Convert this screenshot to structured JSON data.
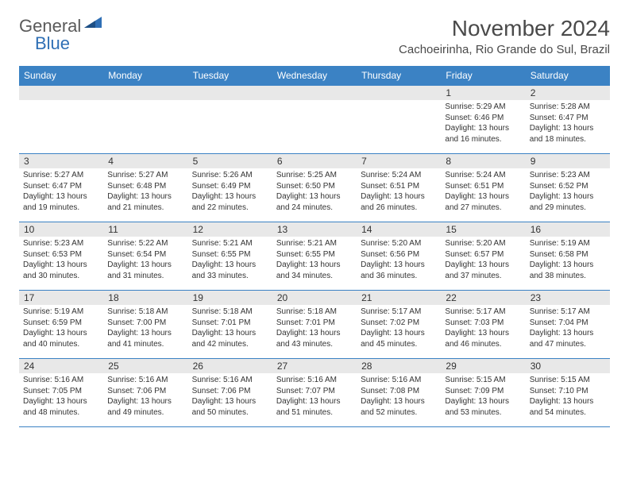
{
  "logo": {
    "text1": "General",
    "text2": "Blue"
  },
  "title": "November 2024",
  "location": "Cachoeirinha, Rio Grande do Sul, Brazil",
  "day_headers": [
    "Sunday",
    "Monday",
    "Tuesday",
    "Wednesday",
    "Thursday",
    "Friday",
    "Saturday"
  ],
  "colors": {
    "header_bg": "#3b82c4",
    "header_text": "#ffffff",
    "day_num_bg": "#e8e8e8",
    "border": "#3b82c4",
    "logo_accent": "#2f6fb5",
    "logo_gray": "#5a5a5a"
  },
  "weeks": [
    [
      {
        "empty": true
      },
      {
        "empty": true
      },
      {
        "empty": true
      },
      {
        "empty": true
      },
      {
        "empty": true
      },
      {
        "day": "1",
        "sunrise": "Sunrise: 5:29 AM",
        "sunset": "Sunset: 6:46 PM",
        "daylight1": "Daylight: 13 hours",
        "daylight2": "and 16 minutes."
      },
      {
        "day": "2",
        "sunrise": "Sunrise: 5:28 AM",
        "sunset": "Sunset: 6:47 PM",
        "daylight1": "Daylight: 13 hours",
        "daylight2": "and 18 minutes."
      }
    ],
    [
      {
        "day": "3",
        "sunrise": "Sunrise: 5:27 AM",
        "sunset": "Sunset: 6:47 PM",
        "daylight1": "Daylight: 13 hours",
        "daylight2": "and 19 minutes."
      },
      {
        "day": "4",
        "sunrise": "Sunrise: 5:27 AM",
        "sunset": "Sunset: 6:48 PM",
        "daylight1": "Daylight: 13 hours",
        "daylight2": "and 21 minutes."
      },
      {
        "day": "5",
        "sunrise": "Sunrise: 5:26 AM",
        "sunset": "Sunset: 6:49 PM",
        "daylight1": "Daylight: 13 hours",
        "daylight2": "and 22 minutes."
      },
      {
        "day": "6",
        "sunrise": "Sunrise: 5:25 AM",
        "sunset": "Sunset: 6:50 PM",
        "daylight1": "Daylight: 13 hours",
        "daylight2": "and 24 minutes."
      },
      {
        "day": "7",
        "sunrise": "Sunrise: 5:24 AM",
        "sunset": "Sunset: 6:51 PM",
        "daylight1": "Daylight: 13 hours",
        "daylight2": "and 26 minutes."
      },
      {
        "day": "8",
        "sunrise": "Sunrise: 5:24 AM",
        "sunset": "Sunset: 6:51 PM",
        "daylight1": "Daylight: 13 hours",
        "daylight2": "and 27 minutes."
      },
      {
        "day": "9",
        "sunrise": "Sunrise: 5:23 AM",
        "sunset": "Sunset: 6:52 PM",
        "daylight1": "Daylight: 13 hours",
        "daylight2": "and 29 minutes."
      }
    ],
    [
      {
        "day": "10",
        "sunrise": "Sunrise: 5:23 AM",
        "sunset": "Sunset: 6:53 PM",
        "daylight1": "Daylight: 13 hours",
        "daylight2": "and 30 minutes."
      },
      {
        "day": "11",
        "sunrise": "Sunrise: 5:22 AM",
        "sunset": "Sunset: 6:54 PM",
        "daylight1": "Daylight: 13 hours",
        "daylight2": "and 31 minutes."
      },
      {
        "day": "12",
        "sunrise": "Sunrise: 5:21 AM",
        "sunset": "Sunset: 6:55 PM",
        "daylight1": "Daylight: 13 hours",
        "daylight2": "and 33 minutes."
      },
      {
        "day": "13",
        "sunrise": "Sunrise: 5:21 AM",
        "sunset": "Sunset: 6:55 PM",
        "daylight1": "Daylight: 13 hours",
        "daylight2": "and 34 minutes."
      },
      {
        "day": "14",
        "sunrise": "Sunrise: 5:20 AM",
        "sunset": "Sunset: 6:56 PM",
        "daylight1": "Daylight: 13 hours",
        "daylight2": "and 36 minutes."
      },
      {
        "day": "15",
        "sunrise": "Sunrise: 5:20 AM",
        "sunset": "Sunset: 6:57 PM",
        "daylight1": "Daylight: 13 hours",
        "daylight2": "and 37 minutes."
      },
      {
        "day": "16",
        "sunrise": "Sunrise: 5:19 AM",
        "sunset": "Sunset: 6:58 PM",
        "daylight1": "Daylight: 13 hours",
        "daylight2": "and 38 minutes."
      }
    ],
    [
      {
        "day": "17",
        "sunrise": "Sunrise: 5:19 AM",
        "sunset": "Sunset: 6:59 PM",
        "daylight1": "Daylight: 13 hours",
        "daylight2": "and 40 minutes."
      },
      {
        "day": "18",
        "sunrise": "Sunrise: 5:18 AM",
        "sunset": "Sunset: 7:00 PM",
        "daylight1": "Daylight: 13 hours",
        "daylight2": "and 41 minutes."
      },
      {
        "day": "19",
        "sunrise": "Sunrise: 5:18 AM",
        "sunset": "Sunset: 7:01 PM",
        "daylight1": "Daylight: 13 hours",
        "daylight2": "and 42 minutes."
      },
      {
        "day": "20",
        "sunrise": "Sunrise: 5:18 AM",
        "sunset": "Sunset: 7:01 PM",
        "daylight1": "Daylight: 13 hours",
        "daylight2": "and 43 minutes."
      },
      {
        "day": "21",
        "sunrise": "Sunrise: 5:17 AM",
        "sunset": "Sunset: 7:02 PM",
        "daylight1": "Daylight: 13 hours",
        "daylight2": "and 45 minutes."
      },
      {
        "day": "22",
        "sunrise": "Sunrise: 5:17 AM",
        "sunset": "Sunset: 7:03 PM",
        "daylight1": "Daylight: 13 hours",
        "daylight2": "and 46 minutes."
      },
      {
        "day": "23",
        "sunrise": "Sunrise: 5:17 AM",
        "sunset": "Sunset: 7:04 PM",
        "daylight1": "Daylight: 13 hours",
        "daylight2": "and 47 minutes."
      }
    ],
    [
      {
        "day": "24",
        "sunrise": "Sunrise: 5:16 AM",
        "sunset": "Sunset: 7:05 PM",
        "daylight1": "Daylight: 13 hours",
        "daylight2": "and 48 minutes."
      },
      {
        "day": "25",
        "sunrise": "Sunrise: 5:16 AM",
        "sunset": "Sunset: 7:06 PM",
        "daylight1": "Daylight: 13 hours",
        "daylight2": "and 49 minutes."
      },
      {
        "day": "26",
        "sunrise": "Sunrise: 5:16 AM",
        "sunset": "Sunset: 7:06 PM",
        "daylight1": "Daylight: 13 hours",
        "daylight2": "and 50 minutes."
      },
      {
        "day": "27",
        "sunrise": "Sunrise: 5:16 AM",
        "sunset": "Sunset: 7:07 PM",
        "daylight1": "Daylight: 13 hours",
        "daylight2": "and 51 minutes."
      },
      {
        "day": "28",
        "sunrise": "Sunrise: 5:16 AM",
        "sunset": "Sunset: 7:08 PM",
        "daylight1": "Daylight: 13 hours",
        "daylight2": "and 52 minutes."
      },
      {
        "day": "29",
        "sunrise": "Sunrise: 5:15 AM",
        "sunset": "Sunset: 7:09 PM",
        "daylight1": "Daylight: 13 hours",
        "daylight2": "and 53 minutes."
      },
      {
        "day": "30",
        "sunrise": "Sunrise: 5:15 AM",
        "sunset": "Sunset: 7:10 PM",
        "daylight1": "Daylight: 13 hours",
        "daylight2": "and 54 minutes."
      }
    ]
  ]
}
